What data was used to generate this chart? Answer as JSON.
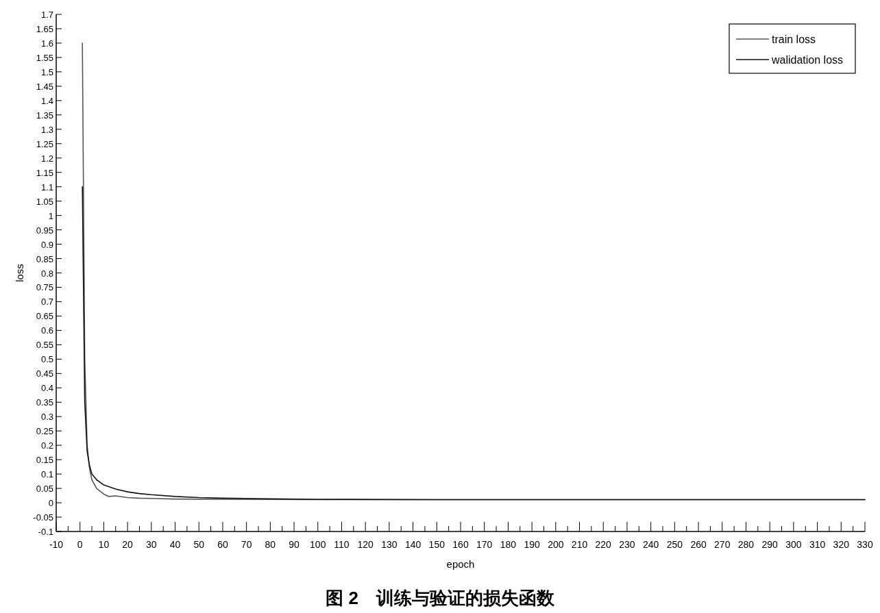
{
  "chart_data": {
    "type": "line",
    "title": "图 2　训练与验证的损失函数",
    "xlabel": "epoch",
    "ylabel": "loss",
    "xlim": [
      -10,
      330
    ],
    "xticks": [
      -10,
      {
        "value": -5,
        "label": null
      },
      0,
      {
        "value": 5,
        "label": null
      },
      10,
      {
        "value": 15,
        "label": null
      },
      20,
      {
        "value": 25,
        "label": null
      },
      30,
      {
        "value": 35,
        "label": null
      },
      40,
      {
        "value": 45,
        "label": null
      },
      50,
      {
        "value": 55,
        "label": null
      },
      60,
      {
        "value": 65,
        "label": null
      },
      70,
      {
        "value": 75,
        "label": null
      },
      80,
      {
        "value": 85,
        "label": null
      },
      90,
      {
        "value": 95,
        "label": null
      },
      100,
      {
        "value": 105,
        "label": null
      },
      110,
      {
        "value": 115,
        "label": null
      },
      120,
      {
        "value": 125,
        "label": null
      },
      130,
      {
        "value": 135,
        "label": null
      },
      140,
      {
        "value": 145,
        "label": null
      },
      150,
      {
        "value": 155,
        "label": null
      },
      160,
      {
        "value": 165,
        "label": null
      },
      170,
      {
        "value": 175,
        "label": null
      },
      180,
      {
        "value": 185,
        "label": null
      },
      190,
      {
        "value": 195,
        "label": null
      },
      200,
      {
        "value": 205,
        "label": null
      },
      210,
      {
        "value": 215,
        "label": null
      },
      220,
      {
        "value": 225,
        "label": null
      },
      230,
      {
        "value": 235,
        "label": null
      },
      240,
      {
        "value": 245,
        "label": null
      },
      250,
      {
        "value": 255,
        "label": null
      },
      260,
      {
        "value": 265,
        "label": null
      },
      270,
      {
        "value": 275,
        "label": null
      },
      280,
      {
        "value": 285,
        "label": null
      },
      290,
      {
        "value": 295,
        "label": null
      },
      300,
      {
        "value": 305,
        "label": null
      },
      310,
      {
        "value": 315,
        "label": null
      },
      320,
      {
        "value": 325,
        "label": null
      },
      330
    ],
    "ylim": [
      -0.1,
      1.7
    ],
    "yticks": [
      -0.1,
      -0.05,
      0,
      0.05,
      0.1,
      0.15,
      0.2,
      0.25,
      0.3,
      0.35,
      0.4,
      0.45,
      0.5,
      0.55,
      0.6,
      0.65,
      0.7,
      0.75,
      0.8,
      0.85,
      0.9,
      0.95,
      1,
      1.05,
      1.1,
      1.15,
      1.2,
      1.25,
      1.3,
      1.35,
      1.4,
      1.45,
      1.5,
      1.55,
      1.6,
      1.65,
      1.7
    ],
    "grid": false,
    "legend": "top right",
    "marker": "none",
    "line_style": "solid",
    "series": [
      {
        "name": "train loss",
        "color": "#555555",
        "x": [
          1,
          2,
          3,
          4,
          5,
          7,
          10,
          12,
          15,
          20,
          25,
          30,
          40,
          60,
          100,
          150,
          200,
          250,
          300,
          330
        ],
        "values": [
          1.6,
          0.5,
          0.2,
          0.12,
          0.08,
          0.05,
          0.03,
          0.022,
          0.024,
          0.018,
          0.016,
          0.015,
          0.013,
          0.012,
          0.011,
          0.011,
          0.011,
          0.011,
          0.011,
          0.011
        ]
      },
      {
        "name": "walidation loss",
        "color": "#111111",
        "x": [
          1,
          2,
          3,
          4,
          5,
          7,
          10,
          15,
          20,
          25,
          30,
          40,
          50,
          60,
          80,
          100,
          150,
          200,
          250,
          300,
          330
        ],
        "values": [
          1.1,
          0.35,
          0.18,
          0.13,
          0.1,
          0.08,
          0.062,
          0.048,
          0.038,
          0.032,
          0.028,
          0.022,
          0.018,
          0.016,
          0.014,
          0.012,
          0.011,
          0.011,
          0.011,
          0.011,
          0.011
        ]
      }
    ]
  }
}
